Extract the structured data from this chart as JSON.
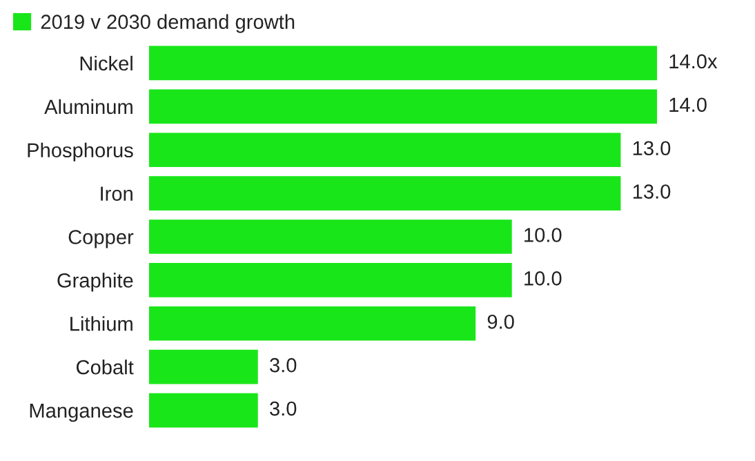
{
  "chart_data": {
    "type": "bar",
    "orientation": "horizontal",
    "categories": [
      "Nickel",
      "Aluminum",
      "Phosphorus",
      "Iron",
      "Copper",
      "Graphite",
      "Lithium",
      "Cobalt",
      "Manganese"
    ],
    "series": [
      {
        "name": "2019 v 2030 demand growth",
        "color": "#19e619",
        "values": [
          14.0,
          14.0,
          13.0,
          13.0,
          10.0,
          10.0,
          9.0,
          3.0,
          3.0
        ],
        "value_labels": [
          "14.0x",
          "14.0",
          "13.0",
          "13.0",
          "10.0",
          "10.0",
          "9.0",
          "3.0",
          "3.0"
        ]
      }
    ],
    "legend": "top left"
  }
}
